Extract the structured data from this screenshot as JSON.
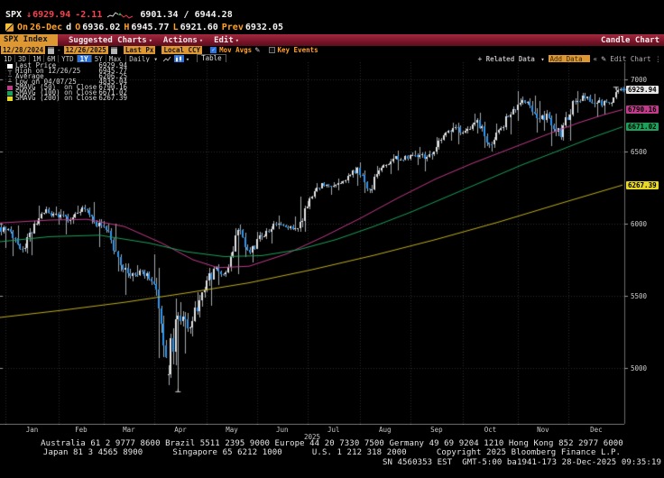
{
  "header": {
    "ticker": "SPX",
    "arrow": "↓",
    "last": "6929.94",
    "change": "-2.11",
    "range": "6901.34 / 6944.28",
    "sparkline": {
      "white": "1,8 4,6 7,7 10,3 13,5",
      "green": "13,6 15,3 17,6",
      "red": "16,5 19,8 22,6 25,9 29,7"
    },
    "session": {
      "on_label": "On",
      "date": "26-Dec",
      "freq": "d",
      "o_label": "O",
      "open": "6936.02",
      "h_label": "H",
      "high": "6945.77",
      "l_label": "L",
      "low": "6921.60",
      "prev_label": "Prev",
      "prev": "6932.05"
    }
  },
  "menubar": {
    "security": "SPX Index",
    "items": [
      "Suggested Charts",
      "Actions",
      "Edit"
    ],
    "chart_type": "Candle Chart"
  },
  "toolbar": {
    "date_from": "12/28/2024",
    "date_sep": "-",
    "date_to": "12/26/2025",
    "px_field": "Last Px",
    "ccy_field": "Local CCY",
    "mov_avgs": "Mov Avgs",
    "key_events": "Key Events",
    "periods": [
      "1D",
      "3D",
      "1M",
      "6M",
      "YTD",
      "1Y",
      "5Y",
      "Max"
    ],
    "active_period": "1Y",
    "frequency": "Daily",
    "freq_caret": "▾",
    "table_btn": "Table",
    "related_data": "+ Related Data",
    "related_caret": "▾",
    "add_data_placeholder": "Add Data",
    "collapse_icon": "«",
    "edit_icon": "✎",
    "edit_chart": "Edit Chart",
    "more_icon": "⋮"
  },
  "legend": {
    "rows": [
      {
        "marker": "square",
        "color": "#ffffff",
        "label": "Last Price",
        "value": "6929.94"
      },
      {
        "marker": "high",
        "color": "#b5b5b5",
        "label": "High on 12/26/25",
        "value": "6945.77"
      },
      {
        "marker": "avg",
        "color": "#b5b5b5",
        "label": "Average",
        "value": "6206.25"
      },
      {
        "marker": "low",
        "color": "#b5b5b5",
        "label": "Low on 04/07/25",
        "value": "4835.04"
      },
      {
        "marker": "square",
        "color": "#c23b8b",
        "label": "SMAVG (50)  on Close",
        "value": "6790.16"
      },
      {
        "marker": "square",
        "color": "#1da05a",
        "label": "SMAVG (100) on Close",
        "value": "6671.02"
      },
      {
        "marker": "square",
        "color": "#e8d924",
        "label": "SMAVG (200) on Close",
        "value": "6267.39"
      }
    ]
  },
  "chart_data": {
    "type": "candlestick",
    "symbol": "SPX Index",
    "x_range": [
      "12/28/2024",
      "12/26/2025"
    ],
    "year_label": "2025",
    "y_ticks": [
      7000,
      6500,
      6000,
      5500,
      5000
    ],
    "ylim": [
      4613,
      7118
    ],
    "grid": true,
    "seed": 7,
    "total_days": 260,
    "months": [
      {
        "label": "Jan",
        "start_day": 2
      },
      {
        "label": "Feb",
        "start_day": 24
      },
      {
        "label": "Mar",
        "start_day": 43
      },
      {
        "label": "Apr",
        "start_day": 64
      },
      {
        "label": "May",
        "start_day": 86
      },
      {
        "label": "Jun",
        "start_day": 107
      },
      {
        "label": "Jul",
        "start_day": 128
      },
      {
        "label": "Aug",
        "start_day": 150
      },
      {
        "label": "Sep",
        "start_day": 171
      },
      {
        "label": "Oct",
        "start_day": 193
      },
      {
        "label": "Nov",
        "start_day": 216
      },
      {
        "label": "Dec",
        "start_day": 237
      }
    ],
    "weeks_ohlc": [
      [
        5975,
        6007,
        5829,
        5942
      ],
      [
        5942,
        5985,
        5773,
        5827
      ],
      [
        5827,
        6020,
        5780,
        5997
      ],
      [
        5997,
        6128,
        5990,
        6101
      ],
      [
        6101,
        6121,
        5992,
        6041
      ],
      [
        6041,
        6102,
        5923,
        6026
      ],
      [
        6026,
        6127,
        6003,
        6115
      ],
      [
        6115,
        6147,
        5998,
        6013
      ],
      [
        6013,
        6034,
        5837,
        5955
      ],
      [
        5955,
        5998,
        5666,
        5770
      ],
      [
        5770,
        5786,
        5504,
        5639
      ],
      [
        5639,
        5715,
        5603,
        5668
      ],
      [
        5668,
        5787,
        5572,
        5581
      ],
      [
        5581,
        5695,
        5069,
        5074
      ],
      [
        4953,
        5481,
        4835,
        5363
      ],
      [
        5363,
        5459,
        5101,
        5283
      ],
      [
        5283,
        5528,
        5220,
        5525
      ],
      [
        5525,
        5700,
        5433,
        5687
      ],
      [
        5687,
        5720,
        5578,
        5660
      ],
      [
        5660,
        5968,
        5649,
        5958
      ],
      [
        5958,
        5993,
        5767,
        5803
      ],
      [
        5803,
        5943,
        5729,
        5912
      ],
      [
        5912,
        6016,
        5861,
        6000
      ],
      [
        6000,
        6059,
        5963,
        5977
      ],
      [
        5977,
        6050,
        5943,
        5968
      ],
      [
        5968,
        6187,
        5943,
        6173
      ],
      [
        6173,
        6284,
        6168,
        6279
      ],
      [
        6279,
        6290,
        6201,
        6260
      ],
      [
        6260,
        6315,
        6230,
        6297
      ],
      [
        6297,
        6395,
        6263,
        6389
      ],
      [
        6389,
        6427,
        6212,
        6238
      ],
      [
        6238,
        6402,
        6213,
        6389
      ],
      [
        6389,
        6481,
        6344,
        6450
      ],
      [
        6450,
        6505,
        6370,
        6467
      ],
      [
        6467,
        6508,
        6404,
        6460
      ],
      [
        6460,
        6533,
        6360,
        6482
      ],
      [
        6482,
        6600,
        6444,
        6584
      ],
      [
        6584,
        6699,
        6575,
        6664
      ],
      [
        6664,
        6700,
        6551,
        6644
      ],
      [
        6644,
        6765,
        6625,
        6716
      ],
      [
        6716,
        6770,
        6525,
        6553
      ],
      [
        6553,
        6695,
        6500,
        6664
      ],
      [
        6664,
        6815,
        6620,
        6792
      ],
      [
        6792,
        6920,
        6713,
        6840
      ],
      [
        6840,
        6890,
        6631,
        6729
      ],
      [
        6729,
        6850,
        6643,
        6734
      ],
      [
        6734,
        6760,
        6538,
        6603
      ],
      [
        6603,
        6859,
        6576,
        6849
      ],
      [
        6849,
        6920,
        6770,
        6870
      ],
      [
        6870,
        6900,
        6736,
        6840
      ],
      [
        6840,
        6875,
        6754,
        6835
      ],
      [
        6835,
        6945.77,
        6812,
        6929.94
      ]
    ],
    "moving_averages": [
      {
        "name": "SMAVG (50) on Close",
        "color": "#c23b8b",
        "last": 6790.16,
        "points": [
          [
            0,
            6005
          ],
          [
            0.08,
            6025
          ],
          [
            0.14,
            6030
          ],
          [
            0.2,
            5980
          ],
          [
            0.26,
            5865
          ],
          [
            0.31,
            5750
          ],
          [
            0.35,
            5695
          ],
          [
            0.4,
            5705
          ],
          [
            0.46,
            5790
          ],
          [
            0.52,
            5910
          ],
          [
            0.58,
            6040
          ],
          [
            0.64,
            6180
          ],
          [
            0.7,
            6310
          ],
          [
            0.76,
            6420
          ],
          [
            0.82,
            6520
          ],
          [
            0.88,
            6620
          ],
          [
            0.93,
            6700
          ],
          [
            0.97,
            6755
          ],
          [
            1,
            6790.16
          ]
        ]
      },
      {
        "name": "SMAVG (100) on Close",
        "color": "#1da05a",
        "last": 6671.02,
        "points": [
          [
            0,
            5875
          ],
          [
            0.08,
            5910
          ],
          [
            0.16,
            5920
          ],
          [
            0.24,
            5865
          ],
          [
            0.3,
            5805
          ],
          [
            0.36,
            5772
          ],
          [
            0.42,
            5778
          ],
          [
            0.48,
            5820
          ],
          [
            0.54,
            5890
          ],
          [
            0.6,
            5980
          ],
          [
            0.66,
            6080
          ],
          [
            0.72,
            6190
          ],
          [
            0.78,
            6300
          ],
          [
            0.84,
            6410
          ],
          [
            0.9,
            6510
          ],
          [
            0.95,
            6595
          ],
          [
            1,
            6671.02
          ]
        ]
      },
      {
        "name": "SMAVG (200) on Close",
        "color": "#bfae1f",
        "last": 6267.39,
        "points": [
          [
            0,
            5350
          ],
          [
            0.1,
            5400
          ],
          [
            0.2,
            5455
          ],
          [
            0.3,
            5520
          ],
          [
            0.4,
            5590
          ],
          [
            0.5,
            5680
          ],
          [
            0.6,
            5780
          ],
          [
            0.7,
            5890
          ],
          [
            0.8,
            6010
          ],
          [
            0.9,
            6140
          ],
          [
            1,
            6267.39
          ]
        ]
      }
    ],
    "markers": {
      "high": {
        "price": 6945.77,
        "date": "12/26/25"
      },
      "low": {
        "price": 4835.04,
        "date": "04/07/25"
      },
      "average": 6206.25,
      "last": 6929.94
    },
    "badges": [
      {
        "text": "6929.94",
        "price": 6929.94,
        "bg": "#e8e8e8"
      },
      {
        "text": "6790.16",
        "price": 6790.16,
        "bg": "#c23b8b"
      },
      {
        "text": "6671.02",
        "price": 6671.02,
        "bg": "#1da05a"
      },
      {
        "text": "6267.39",
        "price": 6267.39,
        "bg": "#e8d924"
      }
    ],
    "colors": {
      "up": "#e2e2e2",
      "down": "#2e94f0",
      "wick": "#a7adb3",
      "grid": "#2c2c2c",
      "axis": "#6e6e6e"
    }
  },
  "footer": {
    "line1": "Australia 61 2 9777 8600 Brazil 5511 2395 9000 Europe 44 20 7330 7500 Germany 49 69 9204 1210 Hong Kong 852 2977 6000",
    "line2": "Japan 81 3 4565 8900      Singapore 65 6212 1000      U.S. 1 212 318 2000      Copyright 2025 Bloomberg Finance L.P.",
    "line3": "SN 4560353 EST  GMT-5:00 ba1941-173 28-Dec-2025 09:35:19"
  }
}
